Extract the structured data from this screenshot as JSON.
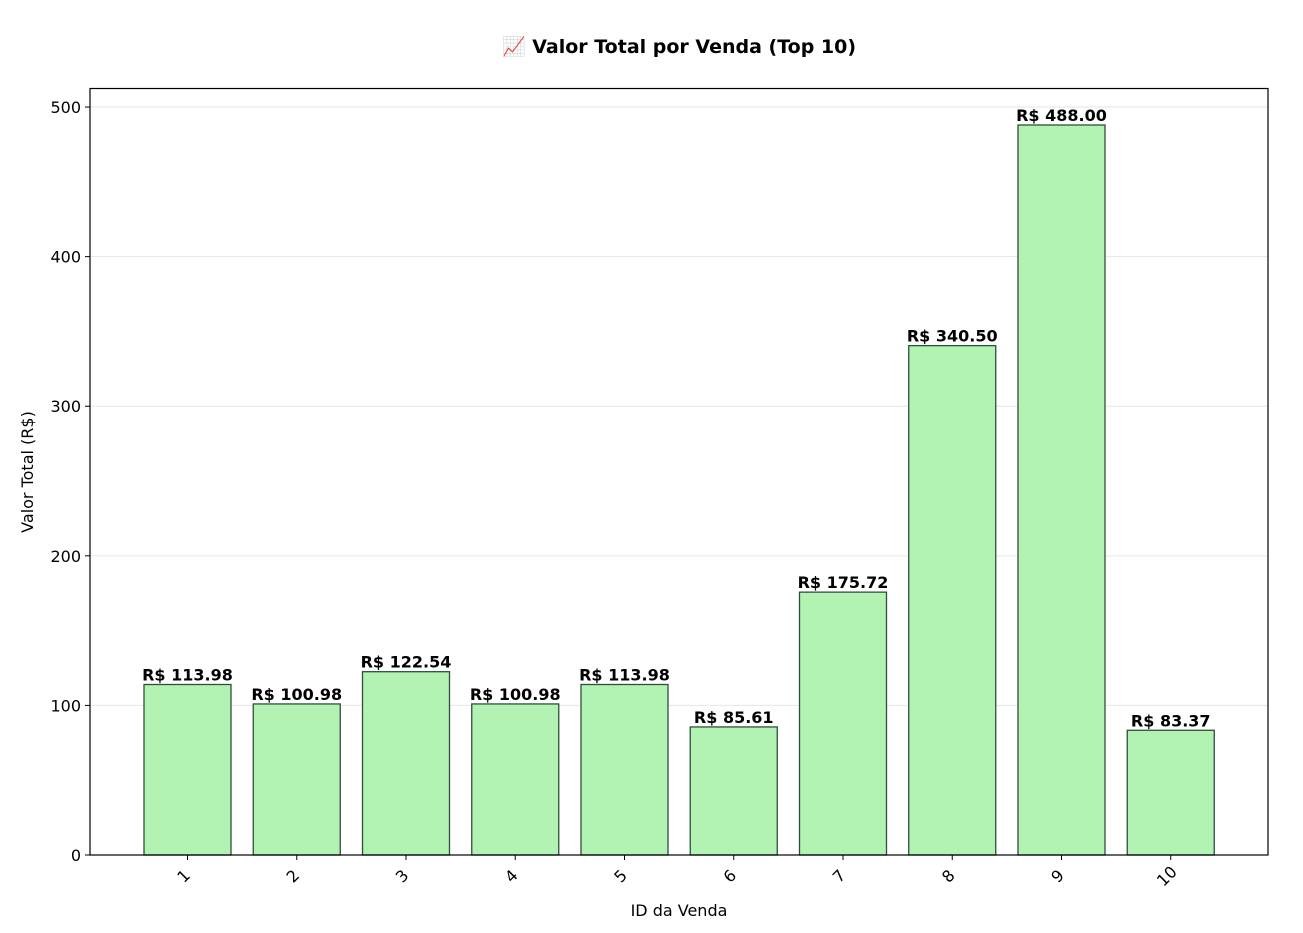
{
  "chart_data": {
    "type": "bar",
    "title": "📈 Valor Total por Venda (Top 10)",
    "xlabel": "ID da Venda",
    "ylabel": "Valor Total (R$)",
    "categories": [
      "1",
      "2",
      "3",
      "4",
      "5",
      "6",
      "7",
      "8",
      "9",
      "10"
    ],
    "values": [
      113.98,
      100.98,
      122.54,
      100.98,
      113.98,
      85.61,
      175.72,
      340.5,
      488.0,
      83.37
    ],
    "data_labels": [
      "R$ 113.98",
      "R$ 100.98",
      "R$ 122.54",
      "R$ 100.98",
      "R$ 113.98",
      "R$ 85.61",
      "R$ 175.72",
      "R$ 340.50",
      "R$ 488.00",
      "R$ 83.37"
    ],
    "ylim": [
      0,
      512.4
    ],
    "yticks": [
      0,
      100,
      200,
      300,
      400,
      500
    ],
    "grid": "y",
    "bar_color": "#b2f2b2",
    "bar_edge_color": "#2f4f3a"
  }
}
